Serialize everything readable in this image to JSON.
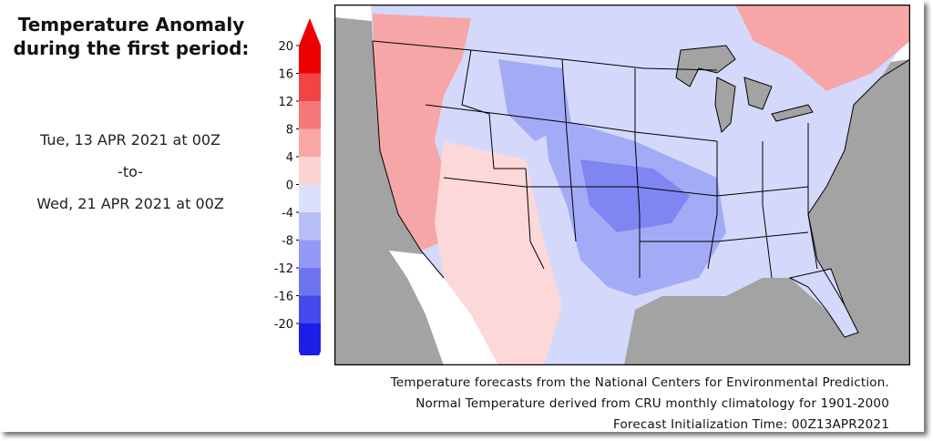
{
  "title": {
    "line1": "Temperature Anomaly",
    "line2": "during the first period:"
  },
  "period": {
    "start": "Tue, 13 APR 2021 at 00Z",
    "separator": "-to-",
    "end": "Wed, 21 APR 2021 at 00Z"
  },
  "colorbar": {
    "ticks": [
      "20",
      "16",
      "12",
      "8",
      "4",
      "0",
      "-4",
      "-8",
      "-12",
      "-16",
      "-20"
    ],
    "colors": [
      "#ee0000",
      "#f24444",
      "#f67777",
      "#f9a7a7",
      "#fcd3d3",
      "#dde0fc",
      "#b8bef8",
      "#9399f4",
      "#6e74f0",
      "#4549ec",
      "#1c1ee6"
    ]
  },
  "map": {
    "colors": {
      "ocean": "#a3a3a3",
      "land_outside": "#ffffff",
      "warm": "#f6a6a6",
      "warm_light": "#fcd8d8",
      "cool_light": "#d4d8fb",
      "cool": "#a4abf6",
      "cool_strong": "#7f86f2"
    }
  },
  "credits": {
    "line1": "Temperature forecasts from the National Centers for Environmental Prediction.",
    "line2": "Normal Temperature derived from CRU monthly climatology for 1901-2000",
    "line3": "Forecast Initialization Time: 00Z13APR2021"
  }
}
